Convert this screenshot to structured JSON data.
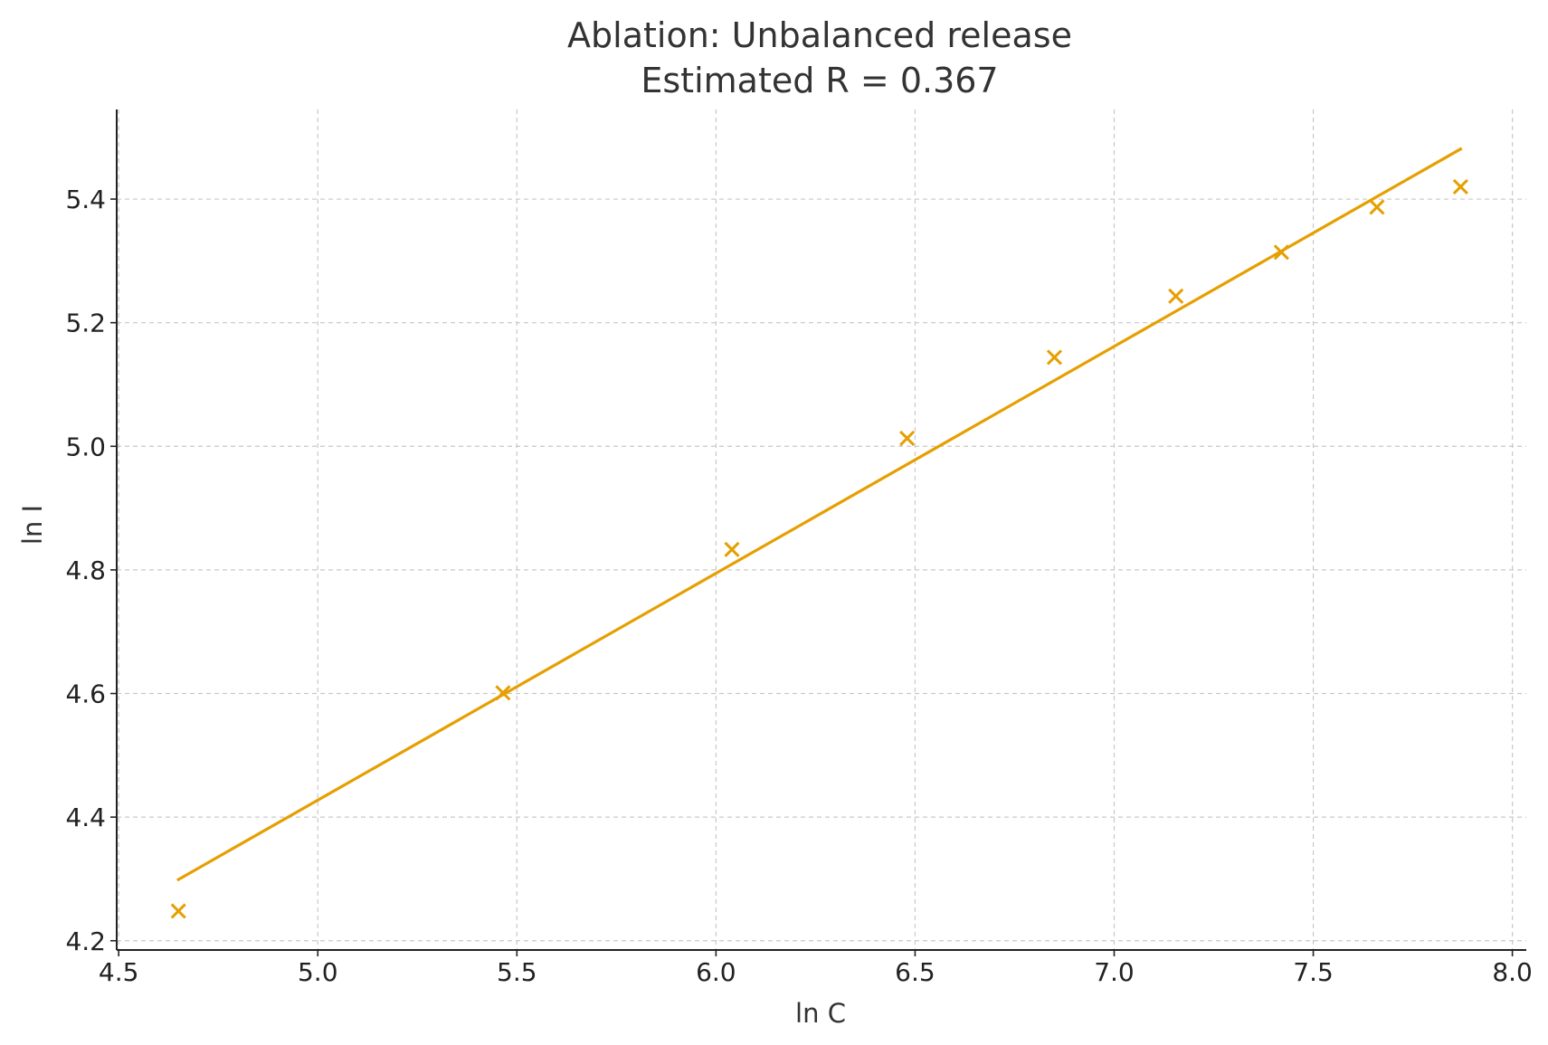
{
  "chart_data": {
    "type": "scatter",
    "title": "Ablation: Unbalanced release",
    "subtitle": "Estimated R = 0.367",
    "xlabel": "ln C",
    "ylabel": "ln I",
    "xlim": [
      4.495,
      8.035
    ],
    "ylim": [
      4.185,
      5.545
    ],
    "xticks": [
      4.5,
      5.0,
      5.5,
      6.0,
      6.5,
      7.0,
      7.5,
      8.0
    ],
    "yticks": [
      4.2,
      4.4,
      4.6,
      4.8,
      5.0,
      5.2,
      5.4
    ],
    "xtick_labels": [
      "4.5",
      "5.0",
      "5.5",
      "6.0",
      "6.5",
      "7.0",
      "7.5",
      "8.0"
    ],
    "ytick_labels": [
      "4.2",
      "4.4",
      "4.6",
      "4.8",
      "5.0",
      "5.2",
      "5.4"
    ],
    "grid": true,
    "legend": "none",
    "series": [
      {
        "kind": "scatter",
        "marker": "x",
        "color": "#E69F00",
        "x": [
          4.65,
          5.465,
          6.04,
          6.48,
          6.85,
          7.155,
          7.42,
          7.66,
          7.87
        ],
        "y": [
          4.248,
          4.601,
          4.833,
          5.013,
          5.144,
          5.243,
          5.314,
          5.387,
          5.42
        ]
      },
      {
        "kind": "line",
        "color": "#E69F00",
        "x": [
          4.65,
          7.87
        ],
        "y": [
          4.299,
          5.481
        ]
      }
    ]
  }
}
